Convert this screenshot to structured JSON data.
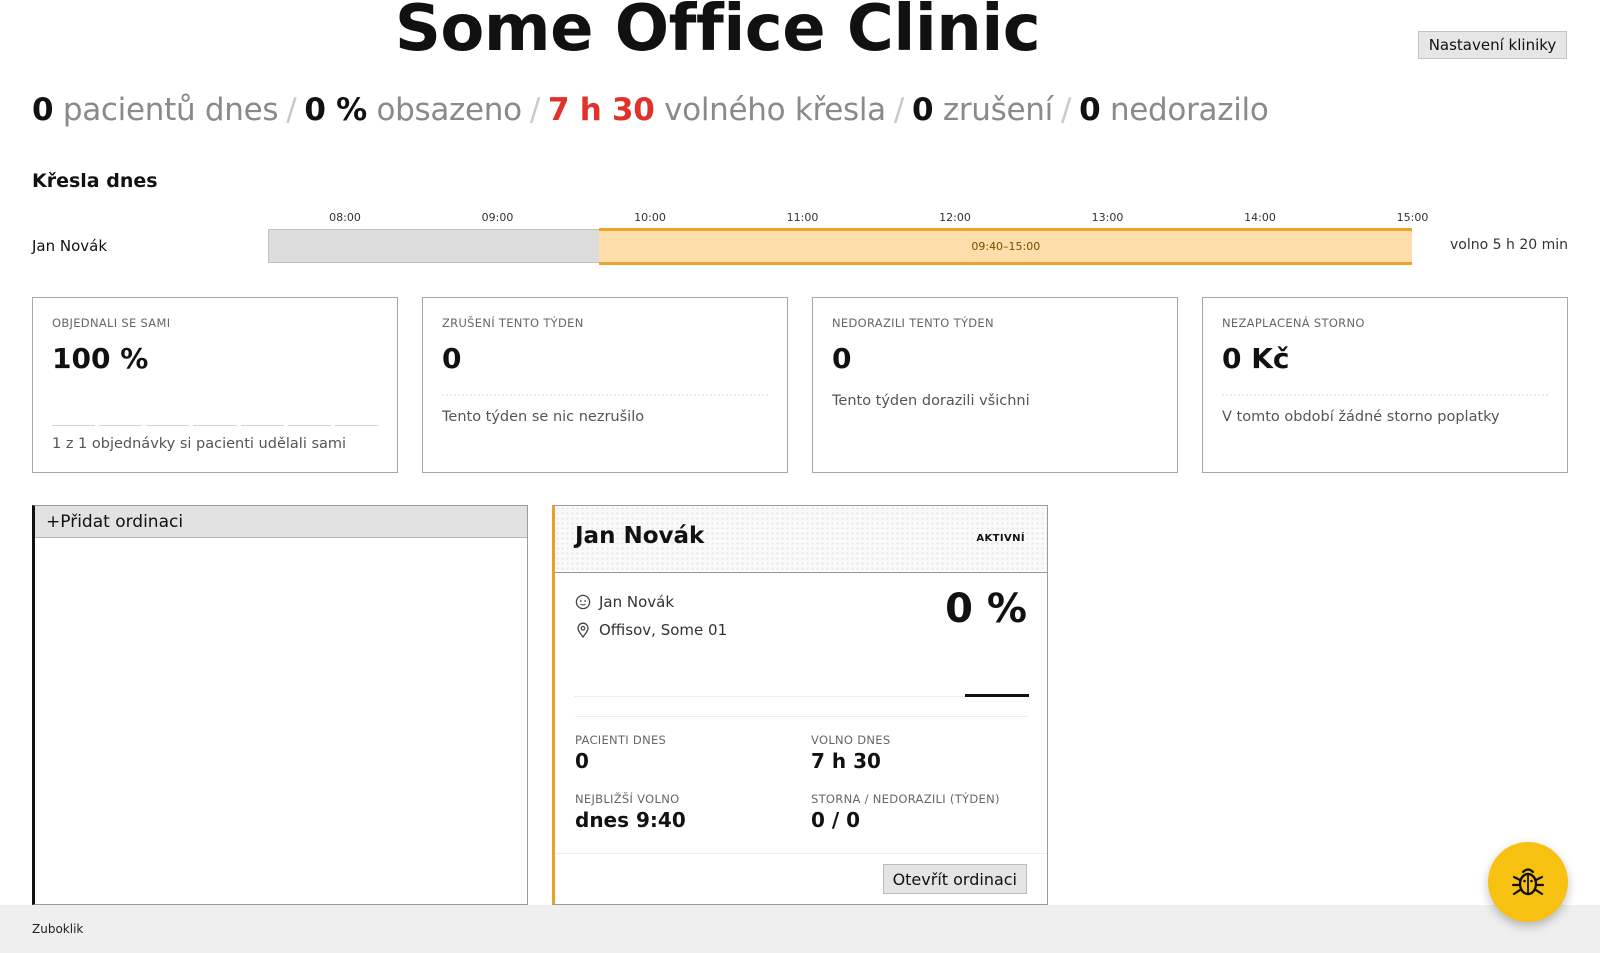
{
  "header": {
    "title": "Some Office Clinic",
    "settings_label": "Nastavení kliniky"
  },
  "summary": {
    "patients_value": "0",
    "patients_label": "pacientů dnes",
    "occupancy_value": "0 %",
    "occupancy_label": "obsazeno",
    "free_value": "7 h 30",
    "free_label": "volného křesla",
    "cancel_value": "0",
    "cancel_label": "zrušení",
    "noshow_value": "0",
    "noshow_label": "nedorazilo",
    "separator": "/"
  },
  "chairs": {
    "title": "Křesla dnes",
    "ticks": [
      "08:00",
      "09:00",
      "10:00",
      "11:00",
      "12:00",
      "13:00",
      "14:00",
      "15:00"
    ],
    "rows": [
      {
        "name": "Jan Novák",
        "slot_label": "09:40–15:00",
        "slot_start_hour": 9.6667,
        "slot_end_hour": 15.0,
        "free_text": "volno 5 h 20 min"
      }
    ]
  },
  "cards": [
    {
      "label": "OBJEDNALI SE SAMI",
      "value": "100 %",
      "desc": "1 z 1 objednávky si pacienti udělali sami"
    },
    {
      "label": "ZRUŠENÍ TENTO TÝDEN",
      "value": "0",
      "desc": "Tento týden se nic nezrušilo"
    },
    {
      "label": "NEDORAZILI TENTO TÝDEN",
      "value": "0",
      "desc": "Tento týden dorazili všichni"
    },
    {
      "label": "NEZAPLACENÁ STORNO",
      "value": "0 Kč",
      "desc": "V tomto období žádné storno poplatky"
    }
  ],
  "offices": {
    "add_label": "Přidat ordinaci",
    "add_symbol": "+"
  },
  "office_card": {
    "name": "Jan Novák",
    "badge": "AKTIVNÍ",
    "doctor": "Jan Novák",
    "address": "Offisov, Some 01",
    "occupancy": "0 %",
    "patients_label": "PACIENTI DNES",
    "patients_value": "0",
    "free_label": "VOLNO DNES",
    "free_value": "7 h 30",
    "next_label": "NEJBLIŽŠÍ VOLNO",
    "next_value": "dnes 9:40",
    "storno_label": "STORNA / NEDORAZILI (TÝDEN)",
    "storno_value": "0 / 0",
    "open_label": "Otevřít ordinaci"
  },
  "footer": {
    "brand": "Zuboklik"
  },
  "icons": {
    "doctor": "face-icon",
    "address": "location-pin-icon",
    "bug": "bug-icon"
  },
  "colors": {
    "accent": "#e7a12b",
    "alert_red": "#e0312b",
    "bug_button": "#f7c111"
  }
}
